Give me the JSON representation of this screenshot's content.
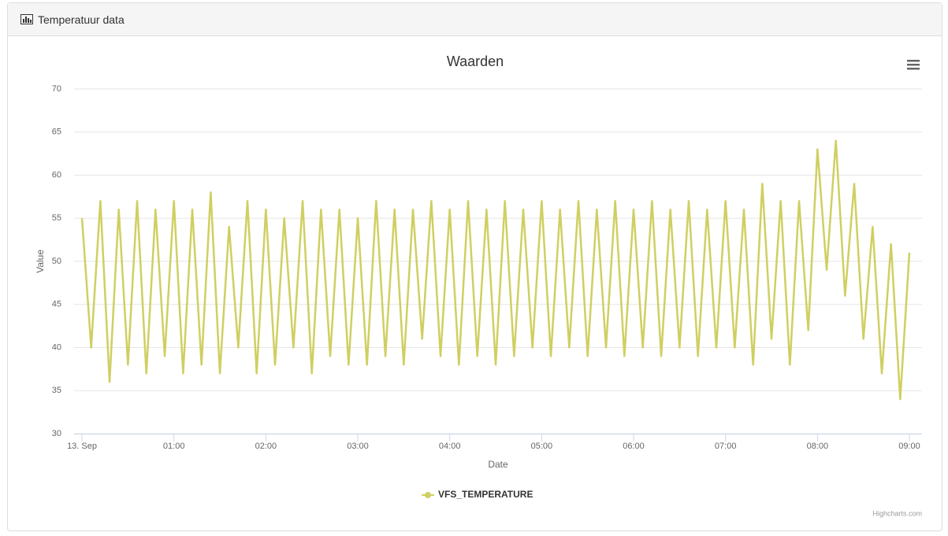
{
  "panel_title": "Temperatuur data",
  "chart_data": {
    "type": "line",
    "title": "Waarden",
    "xlabel": "Date",
    "ylabel": "Value",
    "credits": "Highcharts.com",
    "x": [
      0,
      0.1,
      0.2,
      0.3,
      0.4,
      0.5,
      0.6,
      0.7,
      0.8,
      0.9,
      1,
      1.1,
      1.2,
      1.3,
      1.4,
      1.5,
      1.6,
      1.7,
      1.8,
      1.9,
      2,
      2.1,
      2.2,
      2.3,
      2.4,
      2.5,
      2.6,
      2.7,
      2.8,
      2.9,
      3,
      3.1,
      3.2,
      3.3,
      3.4,
      3.5,
      3.6,
      3.7,
      3.8,
      3.9,
      4,
      4.1,
      4.2,
      4.3,
      4.4,
      4.5,
      4.6,
      4.7,
      4.8,
      4.9,
      5,
      5.1,
      5.2,
      5.3,
      5.4,
      5.5,
      5.6,
      5.7,
      5.8,
      5.9,
      6,
      6.1,
      6.2,
      6.3,
      6.4,
      6.5,
      6.6,
      6.7,
      6.8,
      6.9,
      7,
      7.1,
      7.2,
      7.3,
      7.4,
      7.5,
      7.6,
      7.7,
      7.8,
      7.9,
      8,
      8.1,
      8.2,
      8.3,
      8.4,
      8.5,
      8.6,
      8.7,
      8.8,
      8.9,
      9
    ],
    "series": [
      {
        "name": "VFS_TEMPERATURE",
        "color": "#cfcf62",
        "values": [
          55,
          40,
          57,
          36,
          56,
          38,
          57,
          37,
          56,
          39,
          57,
          37,
          56,
          38,
          58,
          37,
          54,
          40,
          57,
          37,
          56,
          38,
          55,
          40,
          57,
          37,
          56,
          39,
          56,
          38,
          55,
          38,
          57,
          39,
          56,
          38,
          56,
          41,
          57,
          39,
          56,
          38,
          57,
          39,
          56,
          38,
          57,
          39,
          56,
          40,
          57,
          39,
          56,
          40,
          57,
          39,
          56,
          40,
          57,
          39,
          56,
          40,
          57,
          39,
          56,
          40,
          57,
          39,
          56,
          40,
          57,
          40,
          56,
          38,
          59,
          41,
          57,
          38,
          57,
          42,
          63,
          49,
          64,
          46,
          59,
          41,
          54,
          37,
          52,
          34,
          51
        ]
      }
    ],
    "xlim": [
      -0.086,
      9.137
    ],
    "xticks": [
      {
        "value": 0,
        "label": "13. Sep"
      },
      {
        "value": 1,
        "label": "01:00"
      },
      {
        "value": 2,
        "label": "02:00"
      },
      {
        "value": 3,
        "label": "03:00"
      },
      {
        "value": 4,
        "label": "04:00"
      },
      {
        "value": 5,
        "label": "05:00"
      },
      {
        "value": 6,
        "label": "06:00"
      },
      {
        "value": 7,
        "label": "07:00"
      },
      {
        "value": 8,
        "label": "08:00"
      },
      {
        "value": 9,
        "label": "09:00"
      }
    ],
    "ylim": [
      30,
      70
    ],
    "yticks": [
      30,
      35,
      40,
      45,
      50,
      55,
      60,
      65,
      70
    ],
    "grid": true
  }
}
